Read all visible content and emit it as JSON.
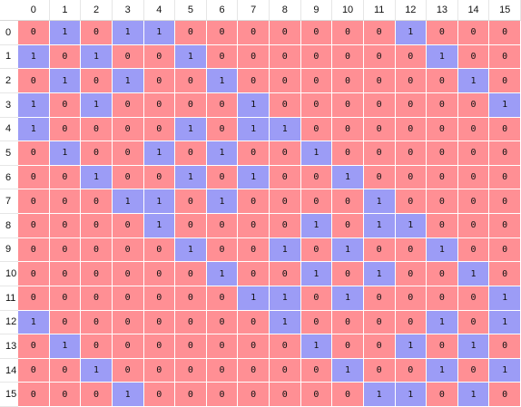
{
  "colors": {
    "zero_cell": "#ff8f94",
    "one_cell": "#9c9cf6"
  },
  "column_headers": [
    "0",
    "1",
    "2",
    "3",
    "4",
    "5",
    "6",
    "7",
    "8",
    "9",
    "10",
    "11",
    "12",
    "13",
    "14",
    "15"
  ],
  "row_headers": [
    "0",
    "1",
    "2",
    "3",
    "4",
    "5",
    "6",
    "7",
    "8",
    "9",
    "10",
    "11",
    "12",
    "13",
    "14",
    "15"
  ],
  "matrix": [
    [
      0,
      1,
      0,
      1,
      1,
      0,
      0,
      0,
      0,
      0,
      0,
      0,
      1,
      0,
      0,
      0
    ],
    [
      1,
      0,
      1,
      0,
      0,
      1,
      0,
      0,
      0,
      0,
      0,
      0,
      0,
      1,
      0,
      0
    ],
    [
      0,
      1,
      0,
      1,
      0,
      0,
      1,
      0,
      0,
      0,
      0,
      0,
      0,
      0,
      1,
      0
    ],
    [
      1,
      0,
      1,
      0,
      0,
      0,
      0,
      1,
      0,
      0,
      0,
      0,
      0,
      0,
      0,
      1
    ],
    [
      1,
      0,
      0,
      0,
      0,
      1,
      0,
      1,
      1,
      0,
      0,
      0,
      0,
      0,
      0,
      0
    ],
    [
      0,
      1,
      0,
      0,
      1,
      0,
      1,
      0,
      0,
      1,
      0,
      0,
      0,
      0,
      0,
      0
    ],
    [
      0,
      0,
      1,
      0,
      0,
      1,
      0,
      1,
      0,
      0,
      1,
      0,
      0,
      0,
      0,
      0
    ],
    [
      0,
      0,
      0,
      1,
      1,
      0,
      1,
      0,
      0,
      0,
      0,
      1,
      0,
      0,
      0,
      0
    ],
    [
      0,
      0,
      0,
      0,
      1,
      0,
      0,
      0,
      0,
      1,
      0,
      1,
      1,
      0,
      0,
      0
    ],
    [
      0,
      0,
      0,
      0,
      0,
      1,
      0,
      0,
      1,
      0,
      1,
      0,
      0,
      1,
      0,
      0
    ],
    [
      0,
      0,
      0,
      0,
      0,
      0,
      1,
      0,
      0,
      1,
      0,
      1,
      0,
      0,
      1,
      0
    ],
    [
      0,
      0,
      0,
      0,
      0,
      0,
      0,
      1,
      1,
      0,
      1,
      0,
      0,
      0,
      0,
      1
    ],
    [
      1,
      0,
      0,
      0,
      0,
      0,
      0,
      0,
      1,
      0,
      0,
      0,
      0,
      1,
      0,
      1
    ],
    [
      0,
      1,
      0,
      0,
      0,
      0,
      0,
      0,
      0,
      1,
      0,
      0,
      1,
      0,
      1,
      0
    ],
    [
      0,
      0,
      1,
      0,
      0,
      0,
      0,
      0,
      0,
      0,
      1,
      0,
      0,
      1,
      0,
      1
    ],
    [
      0,
      0,
      0,
      1,
      0,
      0,
      0,
      0,
      0,
      0,
      0,
      1,
      1,
      0,
      1,
      0
    ]
  ]
}
